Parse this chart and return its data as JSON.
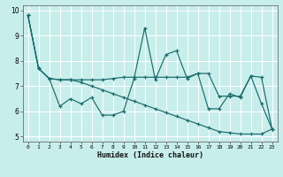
{
  "xlabel": "Humidex (Indice chaleur)",
  "bg_color": "#c8eeec",
  "grid_color": "#ffffff",
  "line_color": "#1a6b6b",
  "line1": [
    9.8,
    7.7,
    7.3,
    6.2,
    6.5,
    6.3,
    6.55,
    5.85,
    5.85,
    6.0,
    7.3,
    9.3,
    7.25,
    8.25,
    8.4,
    7.3,
    7.5,
    6.1,
    6.1,
    6.7,
    6.55,
    7.4,
    6.3,
    5.3
  ],
  "line2": [
    9.8,
    7.7,
    7.3,
    7.25,
    7.25,
    7.25,
    7.25,
    7.25,
    7.3,
    7.35,
    7.35,
    7.35,
    7.35,
    7.35,
    7.35,
    7.35,
    7.5,
    7.5,
    6.6,
    6.6,
    6.6,
    7.4,
    7.35,
    5.3
  ],
  "line3": [
    9.8,
    7.7,
    7.3,
    7.25,
    7.25,
    7.15,
    7.0,
    6.85,
    6.7,
    6.55,
    6.4,
    6.25,
    6.1,
    5.95,
    5.8,
    5.65,
    5.5,
    5.35,
    5.2,
    5.15,
    5.1,
    5.1,
    5.1,
    5.3
  ],
  "xlim": [
    -0.5,
    23.5
  ],
  "ylim": [
    4.8,
    10.2
  ],
  "yticks": [
    5,
    6,
    7,
    8,
    9,
    10
  ],
  "xticks": [
    0,
    1,
    2,
    3,
    4,
    5,
    6,
    7,
    8,
    9,
    10,
    11,
    12,
    13,
    14,
    15,
    16,
    17,
    18,
    19,
    20,
    21,
    22,
    23
  ]
}
